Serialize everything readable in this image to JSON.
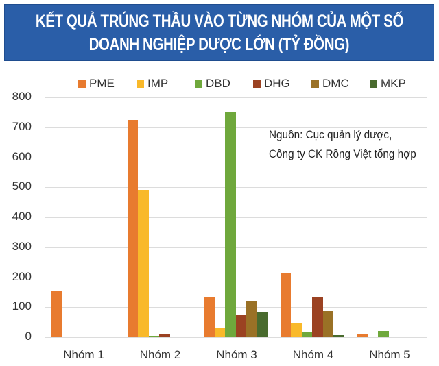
{
  "header": {
    "title_line1": "KẾT QUẢ TRÚNG THẦU VÀO TỪNG NHÓM CỦA MỘT SỐ",
    "title_line2": "DOANH NGHIỆP DƯỢC LỚN (TỶ ĐỒNG)",
    "background": "#2a5ea8"
  },
  "source_note": {
    "line1": "Nguồn: Cục quản lý dược,",
    "line2": "Công ty CK Rồng Việt tổng hợp"
  },
  "chart_data": {
    "type": "bar",
    "title": "KẾT QUẢ TRÚNG THẦU VÀO TỪNG NHÓM CỦA MỘT SỐ DOANH NGHIỆP DƯỢC LỚN (TỶ ĐỒNG)",
    "xlabel": "",
    "ylabel": "",
    "ylim": [
      0,
      800
    ],
    "yticks": [
      0,
      100,
      200,
      300,
      400,
      500,
      600,
      700,
      800
    ],
    "grid": true,
    "legend_position": "top",
    "categories": [
      "Nhóm 1",
      "Nhóm 2",
      "Nhóm 3",
      "Nhóm 4",
      "Nhóm 5"
    ],
    "series": [
      {
        "name": "PME",
        "color": "#e87b2f",
        "values": [
          153,
          724,
          135,
          213,
          9
        ]
      },
      {
        "name": "IMP",
        "color": "#f9b92a",
        "values": [
          0,
          491,
          32,
          48,
          0
        ]
      },
      {
        "name": "DBD",
        "color": "#6fa83c",
        "values": [
          0,
          4,
          752,
          18,
          20
        ]
      },
      {
        "name": "DHG",
        "color": "#9b4222",
        "values": [
          0,
          12,
          73,
          133,
          0
        ]
      },
      {
        "name": "DMC",
        "color": "#9a7126",
        "values": [
          0,
          0,
          121,
          87,
          0
        ]
      },
      {
        "name": "MKP",
        "color": "#496b2e",
        "values": [
          0,
          0,
          85,
          7,
          0
        ]
      }
    ],
    "annotations": [
      "Nguồn: Cục quản lý dược, Công ty CK Rồng Việt tổng hợp"
    ]
  }
}
